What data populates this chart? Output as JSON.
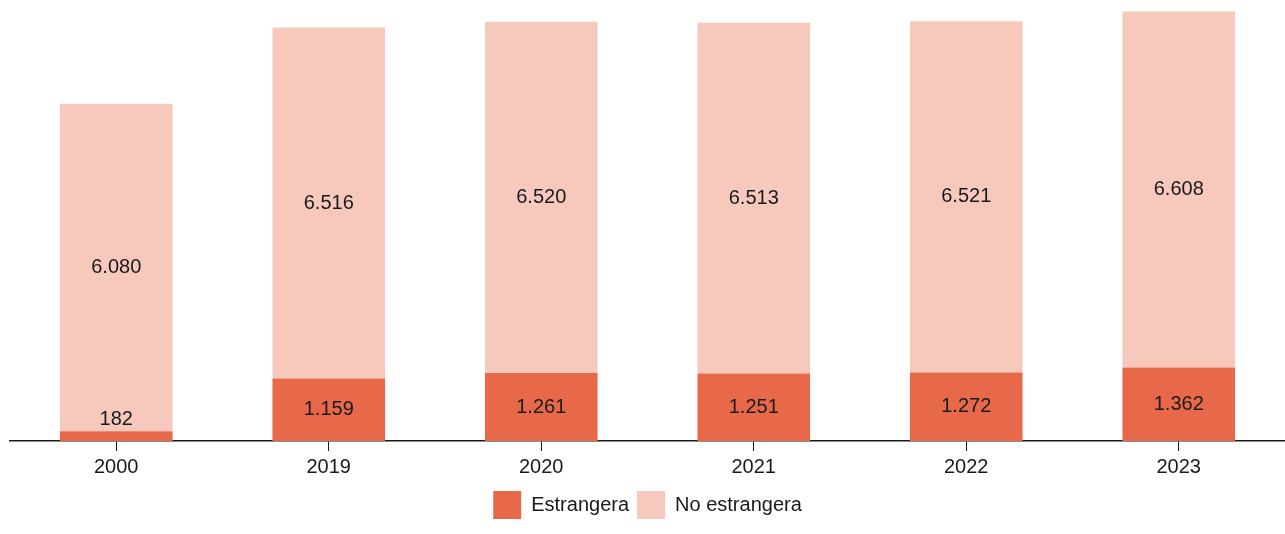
{
  "chart_data": {
    "type": "bar",
    "stacked": true,
    "categories": [
      "2000",
      "2019",
      "2020",
      "2021",
      "2022",
      "2023"
    ],
    "series": [
      {
        "name": "Estrangera",
        "color": "#e8694a",
        "values": [
          182,
          1159,
          1261,
          1251,
          1272,
          1362
        ],
        "value_labels": [
          "182",
          "1.159",
          "1.261",
          "1.251",
          "1.272",
          "1.362"
        ]
      },
      {
        "name": "No estrangera",
        "color": "#f7c9bd",
        "values": [
          6080,
          6516,
          6520,
          6513,
          6521,
          6608
        ],
        "value_labels": [
          "6.080",
          "6.516",
          "6.520",
          "6.513",
          "6.521",
          "6.608"
        ]
      }
    ],
    "legend": "bottom",
    "grid": false
  }
}
